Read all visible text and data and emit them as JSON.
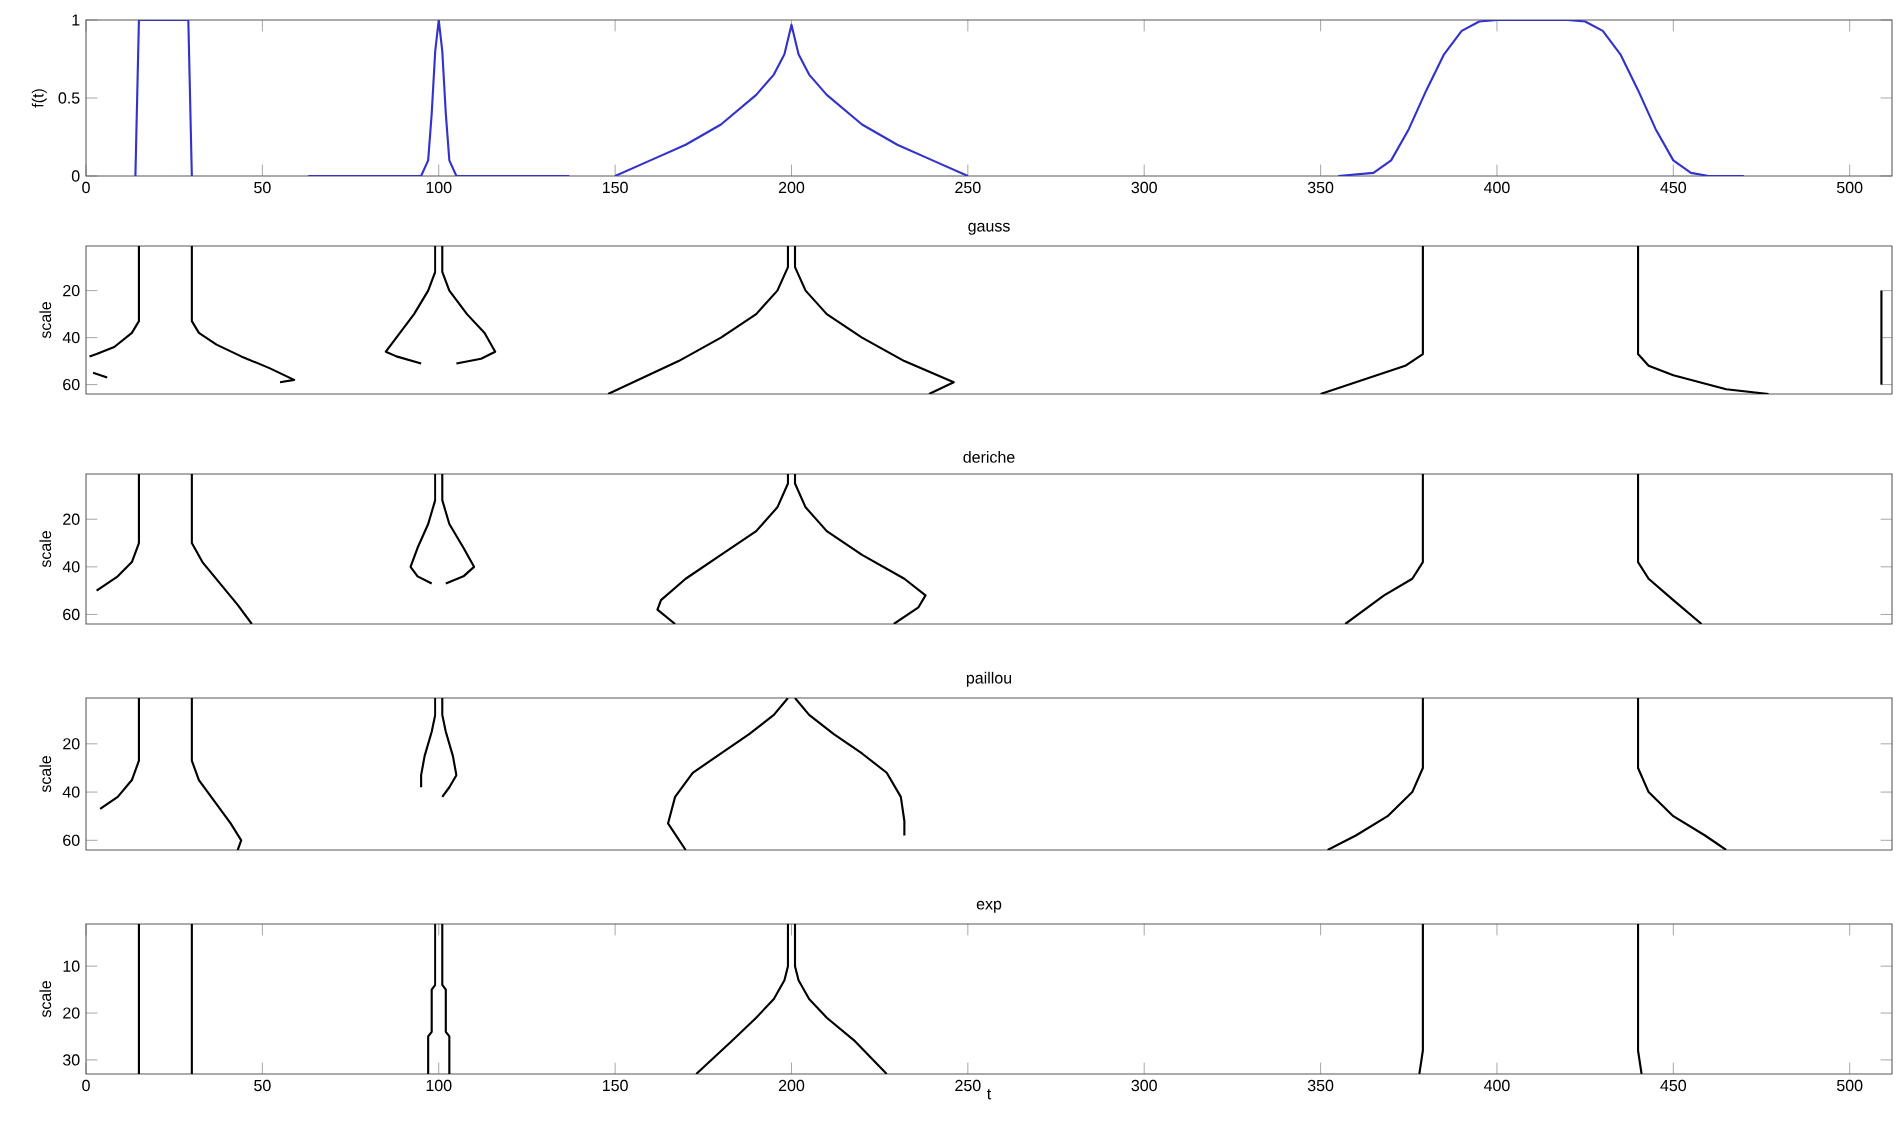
{
  "chart_data": [
    {
      "type": "line",
      "ylabel": "f(t)",
      "xlim": [
        0,
        512
      ],
      "ylim": [
        0,
        1
      ],
      "xticks": [
        0,
        50,
        100,
        150,
        200,
        250,
        300,
        350,
        400,
        450,
        500
      ],
      "yticks": [
        0,
        {
          "value": 0.5,
          "label": "0.5"
        },
        1
      ],
      "series": [
        {
          "color": "#3333cc",
          "x": [
            14,
            15,
            29,
            30,
            null,
            63,
            95,
            97,
            98,
            99,
            100,
            101,
            102,
            103,
            105,
            137,
            null,
            150,
            160,
            170,
            180,
            190,
            195,
            198,
            200,
            202,
            205,
            210,
            220,
            230,
            240,
            250,
            null,
            355,
            365,
            370,
            375,
            380,
            385,
            390,
            395,
            400,
            420,
            425,
            430,
            435,
            440,
            445,
            450,
            455,
            460,
            470
          ],
          "values": [
            0,
            1,
            1,
            0,
            null,
            0,
            0,
            0.1,
            0.4,
            0.8,
            1,
            0.8,
            0.4,
            0.1,
            0,
            0,
            null,
            0,
            0.1,
            0.2,
            0.33,
            0.52,
            0.65,
            0.78,
            0.97,
            0.78,
            0.65,
            0.52,
            0.33,
            0.2,
            0.1,
            0,
            null,
            0,
            0.02,
            0.1,
            0.3,
            0.55,
            0.78,
            0.93,
            0.99,
            1,
            1,
            0.99,
            0.93,
            0.78,
            0.55,
            0.3,
            0.1,
            0.02,
            0,
            0
          ]
        }
      ]
    },
    {
      "type": "line",
      "title": "gauss",
      "ylabel": "scale",
      "xlim": [
        0,
        512
      ],
      "ylim": [
        64,
        1
      ],
      "yticks": [
        20,
        40,
        60
      ],
      "tick_labels": "y",
      "series": [
        {
          "color": "#000000",
          "x": [
            15,
            15,
            13,
            8,
            3,
            1,
            null,
            2,
            6
          ],
          "values": [
            1,
            33,
            38,
            44,
            47,
            48,
            null,
            55,
            57
          ]
        },
        {
          "color": "#000000",
          "x": [
            30,
            30,
            32,
            37,
            44,
            52,
            59,
            55
          ],
          "values": [
            1,
            33,
            38,
            43,
            48,
            53,
            58,
            59
          ]
        },
        {
          "color": "#000000",
          "x": [
            99,
            99,
            97,
            93,
            89,
            85,
            88,
            95
          ],
          "values": [
            1,
            12,
            20,
            30,
            38,
            46,
            48,
            51
          ]
        },
        {
          "color": "#000000",
          "x": [
            101,
            101,
            103,
            108,
            113,
            116,
            112,
            105
          ],
          "values": [
            1,
            12,
            20,
            30,
            38,
            46,
            49,
            51
          ]
        },
        {
          "color": "#000000",
          "x": [
            199,
            199,
            196,
            190,
            180,
            168,
            148
          ],
          "values": [
            1,
            10,
            20,
            30,
            40,
            50,
            64
          ]
        },
        {
          "color": "#000000",
          "x": [
            201,
            201,
            204,
            210,
            220,
            232,
            246,
            239
          ],
          "values": [
            1,
            10,
            20,
            30,
            40,
            50,
            59,
            64
          ]
        },
        {
          "color": "#000000",
          "x": [
            379,
            379,
            374,
            362,
            350
          ],
          "values": [
            1,
            47,
            52,
            58,
            64
          ]
        },
        {
          "color": "#000000",
          "x": [
            440,
            440,
            443,
            450,
            465,
            477
          ],
          "values": [
            1,
            47,
            52,
            56,
            62,
            64
          ]
        },
        {
          "color": "#000000",
          "x": [
            509,
            509
          ],
          "values": [
            20,
            60
          ]
        }
      ]
    },
    {
      "type": "line",
      "title": "deriche",
      "ylabel": "scale",
      "xlim": [
        0,
        512
      ],
      "ylim": [
        64,
        1
      ],
      "yticks": [
        20,
        40,
        60
      ],
      "tick_labels": "y",
      "series": [
        {
          "color": "#000000",
          "x": [
            15,
            15,
            13,
            9,
            5,
            3
          ],
          "values": [
            1,
            30,
            38,
            44,
            48,
            50
          ]
        },
        {
          "color": "#000000",
          "x": [
            30,
            30,
            33,
            38,
            43,
            47
          ],
          "values": [
            1,
            30,
            38,
            47,
            56,
            64
          ]
        },
        {
          "color": "#000000",
          "x": [
            99,
            99,
            97,
            94,
            92,
            94,
            98
          ],
          "values": [
            1,
            12,
            22,
            32,
            40,
            44,
            47
          ]
        },
        {
          "color": "#000000",
          "x": [
            101,
            101,
            103,
            107,
            110,
            107,
            102
          ],
          "values": [
            1,
            12,
            22,
            32,
            40,
            44,
            47
          ]
        },
        {
          "color": "#000000",
          "x": [
            199,
            199,
            196,
            190,
            180,
            170,
            163,
            162,
            167
          ],
          "values": [
            1,
            5,
            15,
            25,
            35,
            45,
            54,
            58,
            64
          ]
        },
        {
          "color": "#000000",
          "x": [
            201,
            201,
            204,
            210,
            220,
            232,
            238,
            236,
            229
          ],
          "values": [
            1,
            5,
            15,
            25,
            35,
            45,
            52,
            57,
            64
          ]
        },
        {
          "color": "#000000",
          "x": [
            379,
            379,
            376,
            368,
            357
          ],
          "values": [
            1,
            38,
            45,
            52,
            64
          ]
        },
        {
          "color": "#000000",
          "x": [
            440,
            440,
            443,
            450,
            458
          ],
          "values": [
            1,
            38,
            45,
            54,
            64
          ]
        }
      ]
    },
    {
      "type": "line",
      "title": "paillou",
      "ylabel": "scale",
      "xlim": [
        0,
        512
      ],
      "ylim": [
        64,
        1
      ],
      "yticks": [
        20,
        40,
        60
      ],
      "tick_labels": "y",
      "series": [
        {
          "color": "#000000",
          "x": [
            15,
            15,
            13,
            9,
            4
          ],
          "values": [
            1,
            27,
            35,
            42,
            47
          ]
        },
        {
          "color": "#000000",
          "x": [
            30,
            30,
            32,
            37,
            41,
            44,
            43
          ],
          "values": [
            1,
            27,
            35,
            45,
            53,
            60,
            64
          ]
        },
        {
          "color": "#000000",
          "x": [
            99,
            99,
            98,
            96,
            95,
            95
          ],
          "values": [
            1,
            8,
            15,
            25,
            33,
            38
          ]
        },
        {
          "color": "#000000",
          "x": [
            101,
            101,
            102,
            104,
            105,
            103,
            101
          ],
          "values": [
            1,
            8,
            15,
            25,
            33,
            38,
            42
          ]
        },
        {
          "color": "#000000",
          "x": [
            199,
            195,
            188,
            180,
            172,
            167,
            165,
            170
          ],
          "values": [
            1,
            8,
            16,
            24,
            32,
            42,
            53,
            64
          ]
        },
        {
          "color": "#000000",
          "x": [
            201,
            205,
            212,
            220,
            227,
            231,
            232,
            232
          ],
          "values": [
            1,
            8,
            16,
            24,
            32,
            42,
            52,
            58
          ]
        },
        {
          "color": "#000000",
          "x": [
            379,
            379,
            376,
            369,
            360,
            352
          ],
          "values": [
            1,
            30,
            40,
            50,
            58,
            64
          ]
        },
        {
          "color": "#000000",
          "x": [
            440,
            440,
            443,
            450,
            459,
            465
          ],
          "values": [
            1,
            30,
            40,
            50,
            58,
            64
          ]
        }
      ]
    },
    {
      "type": "line",
      "title": "exp",
      "xlabel": "t",
      "ylabel": "scale",
      "xlim": [
        0,
        512
      ],
      "ylim": [
        33,
        1
      ],
      "xticks": [
        0,
        50,
        100,
        150,
        200,
        250,
        300,
        350,
        400,
        450,
        500
      ],
      "yticks": [
        10,
        20,
        30
      ],
      "series": [
        {
          "color": "#000000",
          "x": [
            15,
            15
          ],
          "values": [
            1,
            33
          ]
        },
        {
          "color": "#000000",
          "x": [
            30,
            30
          ],
          "values": [
            1,
            33
          ]
        },
        {
          "color": "#000000",
          "x": [
            99,
            99,
            98,
            98,
            97,
            97
          ],
          "values": [
            1,
            14,
            15,
            24,
            25,
            33
          ]
        },
        {
          "color": "#000000",
          "x": [
            101,
            101,
            102,
            102,
            103,
            103
          ],
          "values": [
            1,
            14,
            15,
            24,
            25,
            33
          ]
        },
        {
          "color": "#000000",
          "x": [
            199,
            199,
            198,
            195,
            190,
            183,
            173
          ],
          "values": [
            1,
            10,
            13,
            17,
            21,
            26,
            33
          ]
        },
        {
          "color": "#000000",
          "x": [
            201,
            201,
            202,
            205,
            210,
            218,
            227
          ],
          "values": [
            1,
            10,
            13,
            17,
            21,
            26,
            33
          ]
        },
        {
          "color": "#000000",
          "x": [
            379,
            379,
            378
          ],
          "values": [
            1,
            28,
            33
          ]
        },
        {
          "color": "#000000",
          "x": [
            440,
            440,
            441
          ],
          "values": [
            1,
            28,
            33
          ]
        }
      ]
    }
  ]
}
